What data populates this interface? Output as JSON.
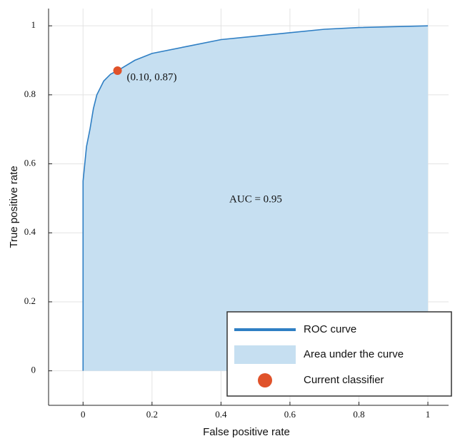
{
  "chart_data": {
    "type": "line",
    "x_label": "False positive rate",
    "y_label": "True positive rate",
    "x": [
      0,
      0,
      0.005,
      0.01,
      0.02,
      0.03,
      0.04,
      0.06,
      0.08,
      0.1,
      0.15,
      0.2,
      0.3,
      0.4,
      0.5,
      0.6,
      0.7,
      0.8,
      1
    ],
    "series": [
      {
        "name": "ROC curve",
        "color": "#2f7fc4",
        "values": [
          0,
          0.55,
          0.6,
          0.65,
          0.7,
          0.76,
          0.8,
          0.84,
          0.86,
          0.87,
          0.9,
          0.92,
          0.94,
          0.96,
          0.97,
          0.98,
          0.99,
          0.995,
          1
        ]
      }
    ],
    "area": {
      "name": "Area under the curve",
      "color": "#c6dff1"
    },
    "marker": {
      "name": "Current classifier",
      "x": 0.1,
      "y": 0.87,
      "color": "#e0522a",
      "label": "(0.10, 0.87)"
    },
    "annotation": "AUC = 0.95",
    "xlim": [
      -0.1,
      1.06
    ],
    "ylim": [
      -0.1,
      1.05
    ],
    "xticks": [
      0,
      0.2,
      0.4,
      0.6,
      0.8,
      1
    ],
    "yticks": [
      0,
      0.2,
      0.4,
      0.6,
      0.8,
      1
    ],
    "grid": true,
    "legend": "lower right"
  }
}
